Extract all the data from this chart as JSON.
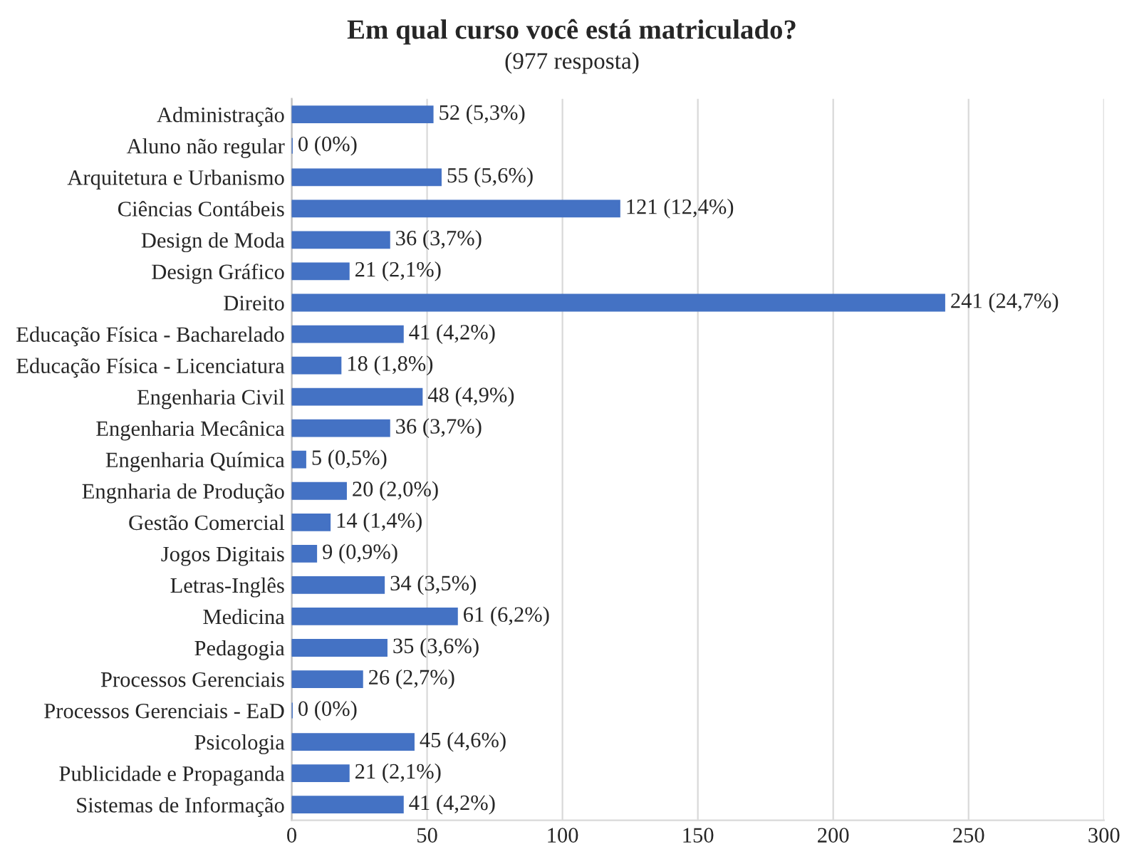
{
  "chart_data": {
    "type": "bar",
    "orientation": "horizontal",
    "title": "Em qual curso você está matriculado?",
    "subtitle": "(977 resposta)",
    "categories": [
      "Administração",
      "Aluno não regular",
      "Arquitetura e Urbanismo",
      "Ciências Contábeis",
      "Design de Moda",
      "Design Gráfico",
      "Direito",
      "Educação Física - Bacharelado",
      "Educação Física - Licenciatura",
      "Engenharia Civil",
      "Engenharia Mecânica",
      "Engenharia Química",
      "Engnharia de Produção",
      "Gestão Comercial",
      "Jogos Digitais",
      "Letras-Inglês",
      "Medicina",
      "Pedagogia",
      "Processos Gerenciais",
      "Processos Gerenciais - EaD",
      "Psicologia",
      "Publicidade e Propaganda",
      "Sistemas de Informação"
    ],
    "values": [
      52,
      0,
      55,
      121,
      36,
      21,
      241,
      41,
      18,
      48,
      36,
      5,
      20,
      14,
      9,
      34,
      61,
      35,
      26,
      0,
      45,
      21,
      41
    ],
    "value_labels": [
      "52 (5,3%)",
      "0 (0%)",
      "55 (5,6%)",
      "121 (12,4%)",
      "36 (3,7%)",
      "21 (2,1%)",
      "241 (24,7%)",
      "41 (4,2%)",
      "18 (1,8%)",
      "48 (4,9%)",
      "36 (3,7%)",
      "5 (0,5%)",
      "20 (2,0%)",
      "14 (1,4%)",
      "9 (0,9%)",
      "34 (3,5%)",
      "61 (6,2%)",
      "35 (3,6%)",
      "26 (2,7%)",
      "0 (0%)",
      "45 (4,6%)",
      "21 (2,1%)",
      "41 (4,2%)"
    ],
    "color": "#4472c4",
    "xlim": [
      0,
      300
    ],
    "xticks": [
      0,
      50,
      100,
      150,
      200,
      250,
      300
    ],
    "grid": "x"
  }
}
